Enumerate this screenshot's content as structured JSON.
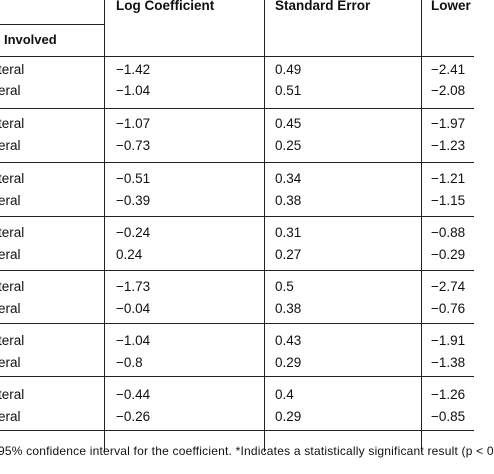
{
  "table": {
    "columns": [
      "Log Coefficient",
      "Standard Error",
      "Lower"
    ],
    "subheader": "Involved",
    "rows": [
      {
        "label": "teral",
        "log": "−1.42",
        "se": "0.49",
        "lower": "−2.41"
      },
      {
        "label": "eral",
        "log": "−1.04",
        "se": "0.51",
        "lower": "−2.08"
      },
      {
        "label": "teral",
        "log": "−1.07",
        "se": "0.45",
        "lower": "−1.97"
      },
      {
        "label": "eral",
        "log": "−0.73",
        "se": "0.25",
        "lower": "−1.23"
      },
      {
        "label": "teral",
        "log": "−0.51",
        "se": "0.34",
        "lower": "−1.21"
      },
      {
        "label": "eral",
        "log": "−0.39",
        "se": "0.38",
        "lower": "−1.15"
      },
      {
        "label": "teral",
        "log": "−0.24",
        "se": "0.31",
        "lower": "−0.88"
      },
      {
        "label": "eral",
        "log": "0.24",
        "se": "0.27",
        "lower": "−0.29"
      },
      {
        "label": "teral",
        "log": "−1.73",
        "se": "0.5",
        "lower": "−2.74"
      },
      {
        "label": "eral",
        "log": "−0.04",
        "se": "0.38",
        "lower": "−0.76"
      },
      {
        "label": "teral",
        "log": "−1.04",
        "se": "0.43",
        "lower": "−1.91"
      },
      {
        "label": "eral",
        "log": "−0.8",
        "se": "0.29",
        "lower": "−1.38"
      },
      {
        "label": "teral",
        "log": "−0.44",
        "se": "0.4",
        "lower": "−1.26"
      },
      {
        "label": "eral",
        "log": "−0.26",
        "se": "0.29",
        "lower": "−0.85"
      }
    ]
  },
  "footnote": "95% confidence interval for the coefficient. *Indicates a statistically significant result (p < 0"
}
